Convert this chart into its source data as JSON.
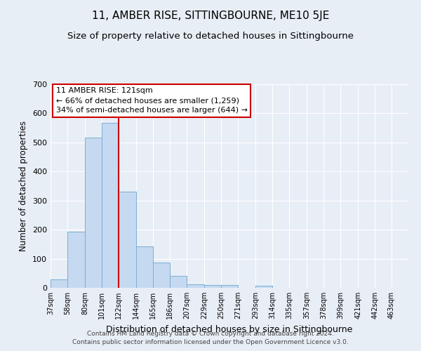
{
  "title": "11, AMBER RISE, SITTINGBOURNE, ME10 5JE",
  "subtitle": "Size of property relative to detached houses in Sittingbourne",
  "xlabel": "Distribution of detached houses by size in Sittingbourne",
  "ylabel": "Number of detached properties",
  "categories": [
    "37sqm",
    "58sqm",
    "80sqm",
    "101sqm",
    "122sqm",
    "144sqm",
    "165sqm",
    "186sqm",
    "207sqm",
    "229sqm",
    "250sqm",
    "271sqm",
    "293sqm",
    "314sqm",
    "335sqm",
    "357sqm",
    "378sqm",
    "399sqm",
    "421sqm",
    "442sqm",
    "463sqm"
  ],
  "bin_edges": [
    37,
    58,
    80,
    101,
    122,
    144,
    165,
    186,
    207,
    229,
    250,
    271,
    293,
    314,
    335,
    357,
    378,
    399,
    421,
    442,
    463
  ],
  "bar_heights": [
    30,
    192,
    516,
    567,
    330,
    143,
    86,
    42,
    12,
    10,
    10,
    0,
    8,
    0,
    0,
    0,
    0,
    0,
    0,
    0
  ],
  "ylim": [
    0,
    700
  ],
  "vline_x": 122,
  "vline_color": "#cc0000",
  "bar_color": "#c5d9f0",
  "bar_edge_color": "#7aafd4",
  "bg_color": "#e8eef6",
  "annotation_text": "11 AMBER RISE: 121sqm\n← 66% of detached houses are smaller (1,259)\n34% of semi-detached houses are larger (644) →",
  "annotation_box_color": "#ffffff",
  "annotation_box_edge": "#cc0000",
  "footer1": "Contains HM Land Registry data © Crown copyright and database right 2024.",
  "footer2": "Contains public sector information licensed under the Open Government Licence v3.0.",
  "title_fontsize": 11,
  "subtitle_fontsize": 9.5,
  "yticks": [
    0,
    100,
    200,
    300,
    400,
    500,
    600,
    700
  ],
  "grid_color": "#ffffff"
}
